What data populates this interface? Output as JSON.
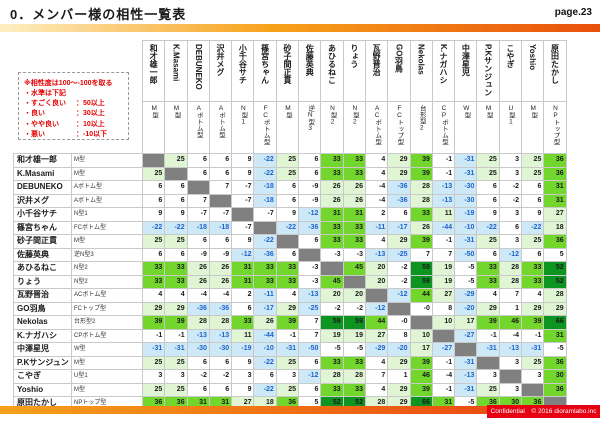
{
  "page": {
    "title": "0．メンバー様の相性一覧表",
    "page_label": "page.23"
  },
  "legend": {
    "line1": "※相性度は100～-100を取る",
    "line2": "・水準は下記",
    "items": [
      {
        "label": "・すごく良い",
        "value": "：50以上"
      },
      {
        "label": "・良い",
        "value": "：30以上"
      },
      {
        "label": "・やや良い",
        "value": "：10以上"
      },
      {
        "label": "・悪い",
        "value": "：-10以下"
      }
    ]
  },
  "members": [
    {
      "name": "和才雄一郎",
      "type": "M型"
    },
    {
      "name": "K.Masami",
      "type": "M型"
    },
    {
      "name": "DEBUNEKO",
      "type": "Aボトム型"
    },
    {
      "name": "沢井メグ",
      "type": "Aボトム型"
    },
    {
      "name": "小千谷サチ",
      "type": "N型1"
    },
    {
      "name": "篠宮ちゃん",
      "type": "FCボトム型"
    },
    {
      "name": "砂子間正貫",
      "type": "M型"
    },
    {
      "name": "佐藤英典",
      "type": "逆N型3"
    },
    {
      "name": "あひるねこ",
      "type": "N型2"
    },
    {
      "name": "りょう",
      "type": "N型2"
    },
    {
      "name": "瓦野晋治",
      "type": "ACボトム型"
    },
    {
      "name": "GO羽鳥",
      "type": "FCトップ型"
    },
    {
      "name": "Nekolas",
      "type": "台形型2"
    },
    {
      "name": "K.ナガハシ",
      "type": "CPボトム型"
    },
    {
      "name": "中澤星児",
      "type": "W型"
    },
    {
      "name": "P.Kサンジュン",
      "type": "M型"
    },
    {
      "name": "こやぎ",
      "type": "U型1"
    },
    {
      "name": "Yoshio",
      "type": "M型"
    },
    {
      "name": "原田たかし",
      "type": "NPトップ型"
    }
  ],
  "matrix": [
    [
      null,
      25,
      6,
      6,
      9,
      -22,
      25,
      6,
      33,
      33,
      4,
      29,
      39,
      -1,
      -31,
      25,
      3,
      25,
      36
    ],
    [
      25,
      null,
      6,
      6,
      9,
      -22,
      25,
      6,
      33,
      33,
      4,
      29,
      39,
      -1,
      -31,
      25,
      3,
      25,
      36
    ],
    [
      6,
      6,
      null,
      7,
      -7,
      -18,
      6,
      -9,
      26,
      26,
      -4,
      -36,
      28,
      -13,
      -30,
      6,
      -2,
      6,
      31
    ],
    [
      6,
      6,
      7,
      null,
      -7,
      -18,
      6,
      -9,
      26,
      26,
      -4,
      -36,
      28,
      -13,
      -30,
      6,
      -2,
      6,
      31
    ],
    [
      9,
      9,
      -7,
      -7,
      null,
      -7,
      9,
      -12,
      31,
      31,
      2,
      6,
      33,
      11,
      -19,
      9,
      3,
      9,
      27
    ],
    [
      -22,
      -22,
      -18,
      -18,
      -7,
      null,
      -22,
      -36,
      33,
      33,
      -11,
      -17,
      26,
      -44,
      -10,
      -22,
      6,
      -22,
      18
    ],
    [
      25,
      25,
      6,
      6,
      9,
      -22,
      null,
      6,
      33,
      33,
      4,
      29,
      39,
      -1,
      -31,
      25,
      3,
      25,
      36
    ],
    [
      6,
      6,
      -9,
      -9,
      -12,
      -36,
      6,
      null,
      -3,
      -3,
      -13,
      -25,
      7,
      7,
      -50,
      6,
      -12,
      6,
      5
    ],
    [
      33,
      33,
      26,
      26,
      31,
      33,
      33,
      -3,
      null,
      45,
      20,
      -2,
      59,
      19,
      -5,
      33,
      28,
      33,
      52
    ],
    [
      33,
      33,
      26,
      26,
      31,
      33,
      33,
      -3,
      45,
      null,
      20,
      -2,
      59,
      19,
      -5,
      33,
      28,
      33,
      52
    ],
    [
      4,
      4,
      -4,
      -4,
      2,
      -11,
      4,
      -13,
      20,
      20,
      null,
      -12,
      44,
      27,
      -29,
      4,
      7,
      4,
      28
    ],
    [
      29,
      29,
      -36,
      -36,
      6,
      -17,
      29,
      -25,
      -2,
      -2,
      -12,
      null,
      "-0",
      8,
      -20,
      29,
      1,
      29,
      29
    ],
    [
      39,
      39,
      28,
      28,
      33,
      26,
      39,
      7,
      59,
      59,
      44,
      "-0",
      null,
      10,
      17,
      39,
      46,
      39,
      66
    ],
    [
      -1,
      -1,
      -13,
      -13,
      11,
      -44,
      -1,
      7,
      19,
      19,
      27,
      8,
      10,
      null,
      -27,
      -1,
      -4,
      -1,
      31
    ],
    [
      -31,
      -31,
      -30,
      -30,
      -19,
      -10,
      -31,
      -50,
      -5,
      -5,
      -29,
      -20,
      17,
      -27,
      null,
      -31,
      -13,
      -31,
      -5
    ],
    [
      25,
      25,
      6,
      6,
      9,
      -22,
      25,
      6,
      33,
      33,
      4,
      29,
      39,
      -1,
      -31,
      null,
      3,
      25,
      36
    ],
    [
      3,
      3,
      -2,
      -2,
      3,
      6,
      3,
      -12,
      28,
      28,
      7,
      1,
      46,
      -4,
      -13,
      3,
      null,
      3,
      30
    ],
    [
      25,
      25,
      6,
      6,
      9,
      -22,
      25,
      6,
      33,
      33,
      4,
      29,
      39,
      -1,
      -31,
      25,
      3,
      null,
      36
    ],
    [
      36,
      36,
      31,
      31,
      27,
      18,
      36,
      5,
      52,
      52,
      28,
      29,
      66,
      31,
      -5,
      36,
      30,
      36,
      null
    ]
  ],
  "thresholds": {
    "dark_green_min": 50,
    "green_min": 30,
    "light_green_min": 10,
    "blue_max": -10
  },
  "colors": {
    "dark_green": "#0E9420",
    "green": "#72D62D",
    "light_green": "#DFF5D3",
    "blue_bg": "#CDE9F8",
    "blue_text": "#1F63C8",
    "diagonal_gray": "#808080",
    "legend_red": "#E60000",
    "bar_orange_left": "#F7A21B",
    "bar_orange_right": "#E8500C",
    "confidential_red": "#E60012"
  },
  "footer": {
    "confidential": "Confidential　© 2016 dioramlabo.inc"
  }
}
